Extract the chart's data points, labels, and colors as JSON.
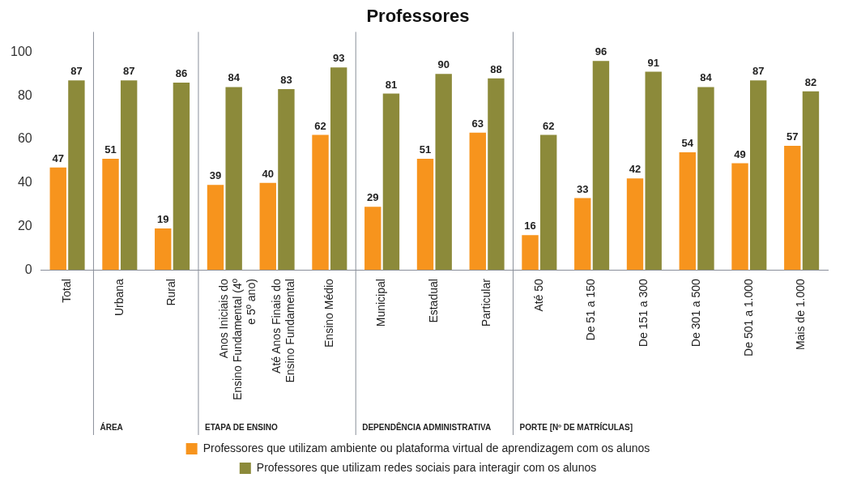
{
  "chart_data": {
    "type": "bar",
    "title": "Professores",
    "categories": [
      "Total",
      "Urbana",
      "Rural",
      "Anos Iniciais do Ensino Fundamental (4º e 5º ano)",
      "Até Anos Finais do Ensino Fundamental",
      "Ensino Médio",
      "Municipal",
      "Estadual",
      "Particular",
      "Até 50",
      "De 51 a 150",
      "De 151 a 300",
      "De 301 a 500",
      "De 501 a 1.000",
      "Mais de 1.000"
    ],
    "series": [
      {
        "name": "Professores que utilizam ambiente ou plataforma virtual de aprendizagem com os alunos",
        "color": "#f7941d",
        "values": [
          47,
          51,
          19,
          39,
          40,
          62,
          29,
          51,
          63,
          16,
          33,
          42,
          54,
          49,
          57
        ]
      },
      {
        "name": "Professores que utilizam redes sociais para interagir com os alunos",
        "color": "#8c8a3a",
        "values": [
          87,
          87,
          86,
          84,
          83,
          93,
          81,
          90,
          88,
          62,
          96,
          91,
          84,
          87,
          82
        ]
      }
    ],
    "ylim": [
      0,
      100
    ],
    "yticks": [
      0,
      20,
      40,
      60,
      80,
      100
    ],
    "grid": false,
    "legend": "bottom",
    "data_labels": true,
    "annotations": [
      "ÁREA",
      "ETAPA DE ENSINO",
      "DEPENDÊNCIA ADMINISTRATIVA",
      "PORTE [Nº DE MATRÍCULAS]"
    ]
  }
}
